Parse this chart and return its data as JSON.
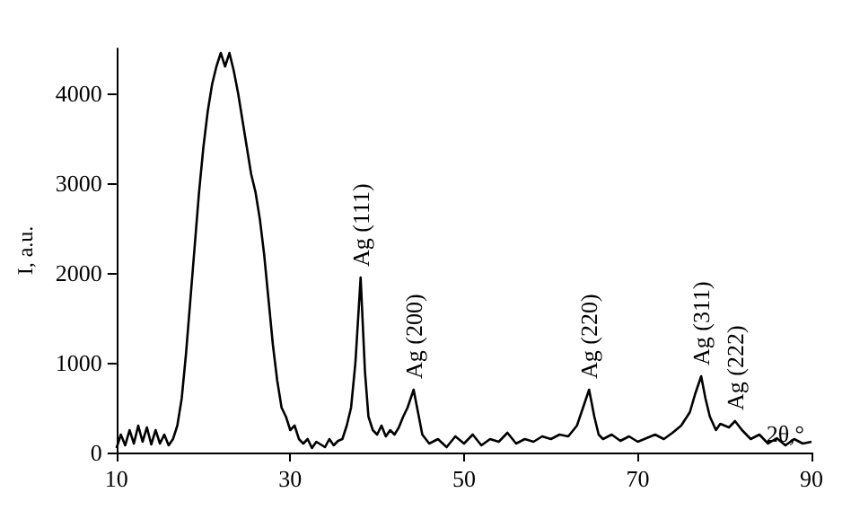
{
  "chart_data": {
    "type": "line",
    "xlabel": "2θ,°",
    "ylabel": "I, a.u.",
    "x": [
      10,
      10.5,
      11,
      11.5,
      12,
      12.5,
      13,
      13.5,
      14,
      14.5,
      15,
      15.5,
      16,
      16.5,
      17,
      17.5,
      18,
      18.5,
      19,
      19.5,
      20,
      20.5,
      21,
      21.5,
      22,
      22.5,
      23,
      23.5,
      24,
      24.5,
      25,
      25.5,
      26,
      26.5,
      27,
      27.5,
      28,
      28.5,
      29,
      29.5,
      30,
      30.5,
      31,
      31.5,
      32,
      32.5,
      33,
      34,
      34.5,
      35,
      35.5,
      36,
      36.5,
      37,
      37.5,
      38.1,
      38.6,
      39,
      39.5,
      40,
      40.5,
      41,
      41.5,
      42,
      42.5,
      43,
      43.5,
      44.2,
      44.7,
      45.2,
      46,
      47,
      48,
      49,
      50,
      51,
      52,
      53,
      54,
      55,
      56,
      57,
      58,
      59,
      60,
      61,
      62,
      63,
      63.7,
      64.4,
      65,
      65.5,
      66,
      67,
      68,
      69,
      70,
      71,
      72,
      73,
      74,
      75,
      76,
      76.6,
      77.3,
      77.8,
      78.3,
      79,
      79.5,
      80.5,
      81.2,
      82,
      83,
      84,
      85,
      86,
      87,
      88,
      89,
      90
    ],
    "series": [
      {
        "color": "#000000",
        "values": [
          50,
          200,
          80,
          250,
          100,
          300,
          120,
          280,
          90,
          250,
          100,
          200,
          80,
          150,
          300,
          600,
          1100,
          1700,
          2300,
          2900,
          3400,
          3800,
          4100,
          4300,
          4450,
          4300,
          4450,
          4250,
          4000,
          3700,
          3400,
          3100,
          2900,
          2600,
          2200,
          1700,
          1200,
          800,
          500,
          400,
          250,
          300,
          150,
          100,
          150,
          50,
          120,
          60,
          150,
          80,
          130,
          150,
          300,
          500,
          1000,
          1950,
          900,
          400,
          250,
          200,
          300,
          180,
          250,
          200,
          280,
          400,
          500,
          700,
          450,
          200,
          100,
          150,
          60,
          180,
          100,
          200,
          80,
          150,
          120,
          220,
          100,
          150,
          120,
          180,
          150,
          200,
          180,
          300,
          500,
          700,
          400,
          200,
          150,
          200,
          130,
          180,
          120,
          160,
          200,
          150,
          220,
          300,
          450,
          650,
          850,
          600,
          400,
          250,
          320,
          280,
          350,
          250,
          150,
          200,
          100,
          160,
          80,
          150,
          100,
          120
        ]
      }
    ],
    "xlim": [
      10,
      90
    ],
    "xticks": [
      10,
      30,
      50,
      70,
      90
    ],
    "ylim": [
      0,
      4500
    ],
    "yticks": [
      0,
      1000,
      2000,
      3000,
      4000
    ],
    "grid": false,
    "marker": "none",
    "line_style": "solid",
    "annotations": [
      {
        "text": "Ag (111)",
        "x": 38.1,
        "y": 1950
      },
      {
        "text": "Ag (200)",
        "x": 44.2,
        "y": 700
      },
      {
        "text": "Ag (220)",
        "x": 64.4,
        "y": 700
      },
      {
        "text": "Ag (311)",
        "x": 77.3,
        "y": 850
      },
      {
        "text": "Ag (222)",
        "x": 81.2,
        "y": 350
      }
    ]
  }
}
